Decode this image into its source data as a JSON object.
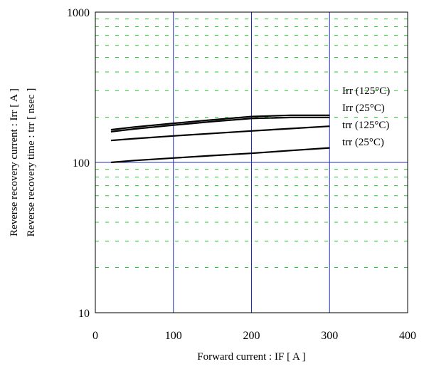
{
  "chart_data": {
    "type": "line",
    "title": "",
    "xlabel": "Forward current  :  IF  [ A ]",
    "ylabel_lines": [
      "Reverse recovery current  :  Irr  [ A ]",
      "Reverse recovery time  :  trr  [ nsec ]"
    ],
    "xlim": [
      0,
      400
    ],
    "ylim": [
      10,
      1000
    ],
    "y_scale": "log",
    "x_ticks": [
      0,
      100,
      200,
      300,
      400
    ],
    "y_ticks": [
      10,
      100,
      1000
    ],
    "grid": {
      "major": "blue solid lines at x = 100, 200, 300 and y = 100",
      "minor": "green dashed lines"
    },
    "series": [
      {
        "name": "Irr (125°C)",
        "x": [
          20,
          50,
          100,
          150,
          200,
          250,
          300
        ],
        "values": [
          165,
          172,
          182,
          192,
          202,
          206,
          206
        ]
      },
      {
        "name": "Irr (25°C)",
        "x": [
          20,
          50,
          100,
          150,
          200,
          250,
          300
        ],
        "values": [
          160,
          167,
          177,
          187,
          196,
          199,
          199
        ]
      },
      {
        "name": "trr (125°C)",
        "x": [
          20,
          50,
          100,
          150,
          200,
          250,
          300
        ],
        "values": [
          140,
          144,
          150,
          156,
          162,
          168,
          174
        ]
      },
      {
        "name": "trr (25°C)",
        "x": [
          20,
          50,
          100,
          150,
          200,
          250,
          300
        ],
        "values": [
          100,
          103,
          107,
          111,
          115,
          120,
          125
        ]
      }
    ]
  }
}
